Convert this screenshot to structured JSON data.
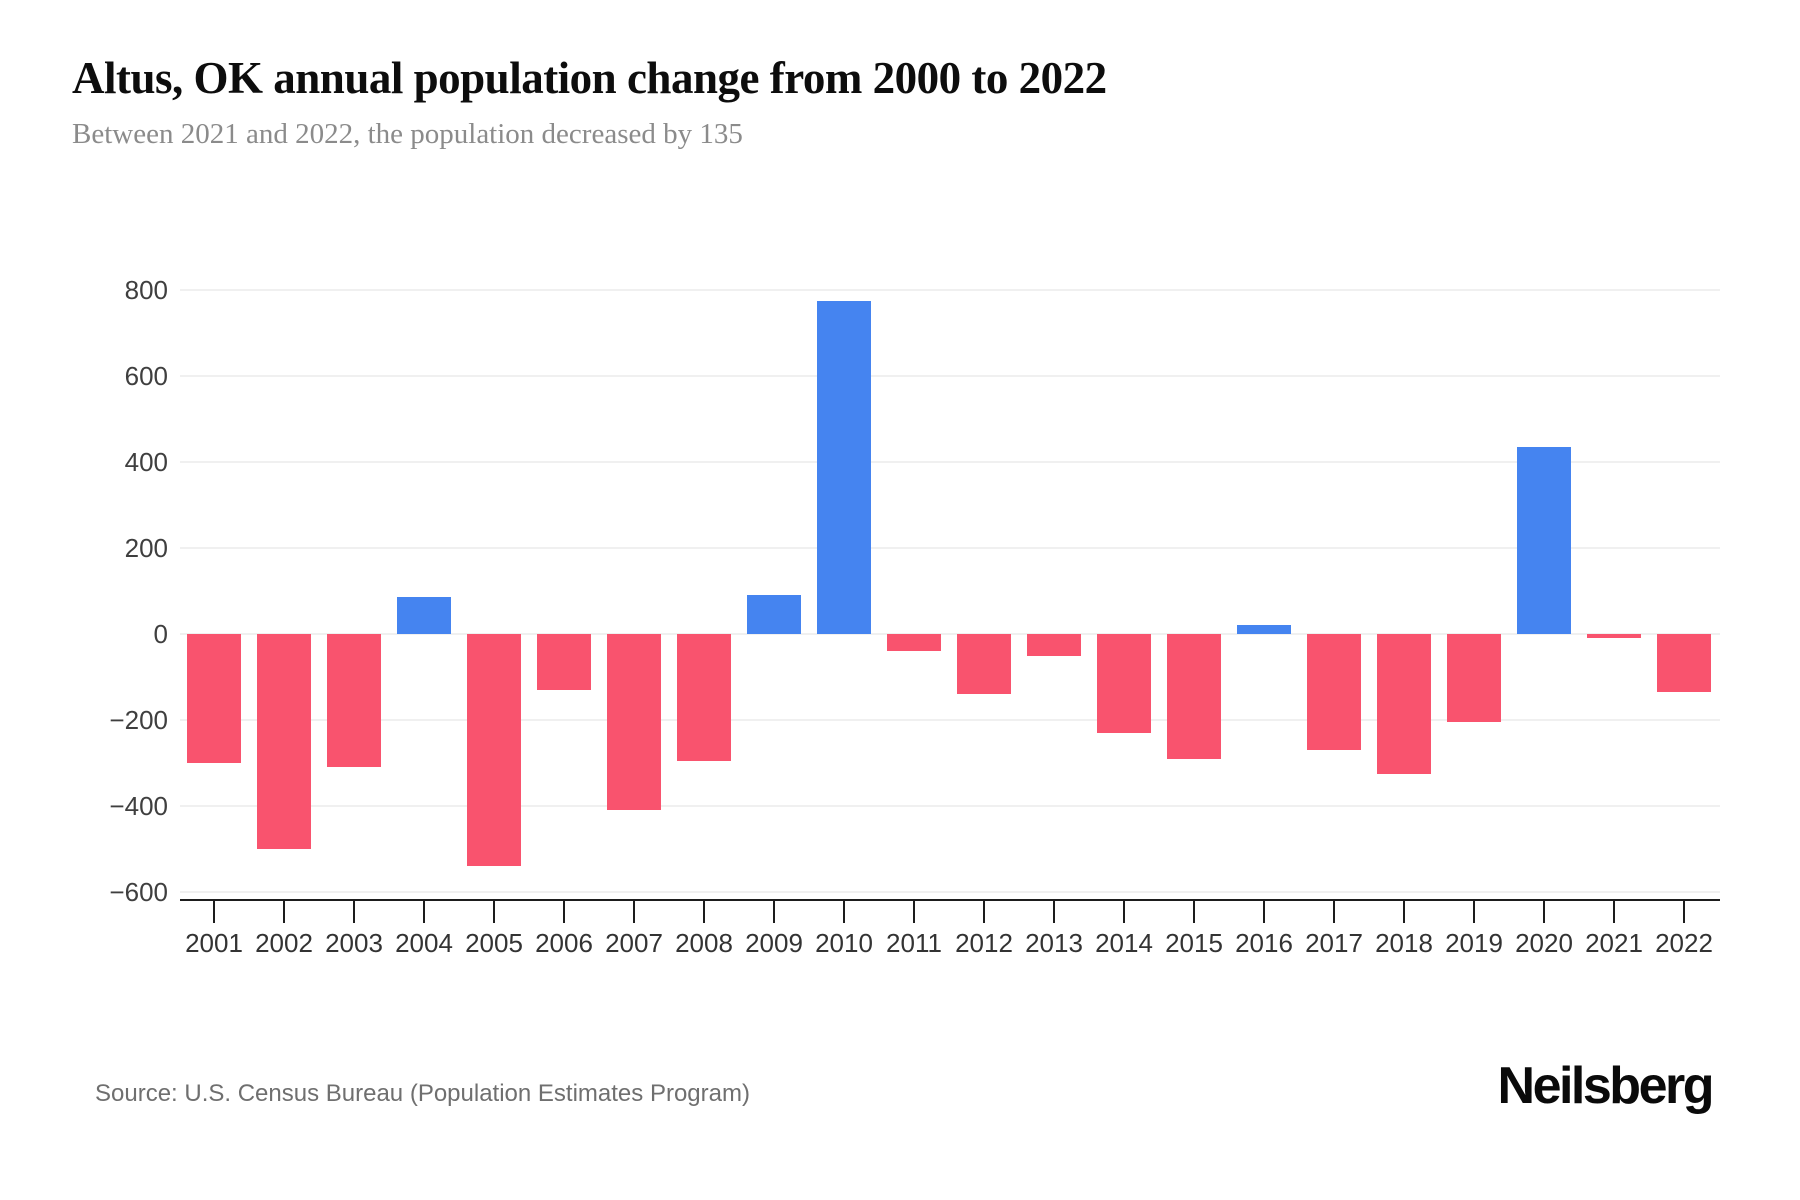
{
  "header": {
    "title": "Altus, OK annual population change from 2000 to 2022",
    "subtitle": "Between 2021 and 2022, the population decreased by 135"
  },
  "footer": {
    "source": "Source: U.S. Census Bureau (Population Estimates Program)",
    "brand": "Neilsberg"
  },
  "chart_data": {
    "type": "bar",
    "title": "Altus, OK annual population change from 2000 to 2022",
    "subtitle": "Between 2021 and 2022, the population decreased by 135",
    "categories": [
      "2001",
      "2002",
      "2003",
      "2004",
      "2005",
      "2006",
      "2007",
      "2008",
      "2009",
      "2010",
      "2011",
      "2012",
      "2013",
      "2014",
      "2015",
      "2016",
      "2017",
      "2018",
      "2019",
      "2020",
      "2021",
      "2022"
    ],
    "values": [
      -300,
      -500,
      -310,
      85,
      -540,
      -130,
      -410,
      -295,
      90,
      775,
      -40,
      -140,
      -50,
      -230,
      -290,
      20,
      -270,
      -325,
      -205,
      435,
      -10,
      -135
    ],
    "xlabel": "",
    "ylabel": "",
    "ylim": [
      -600,
      800
    ],
    "ytick_step": 200,
    "grid": true,
    "legend": false,
    "colors": {
      "positive": "#4584F0",
      "negative": "#F9536E",
      "gridline": "#f0f0f0",
      "axis": "#1d1d1d",
      "x_label": "#333333",
      "y_label": "#3f3f3f"
    }
  }
}
